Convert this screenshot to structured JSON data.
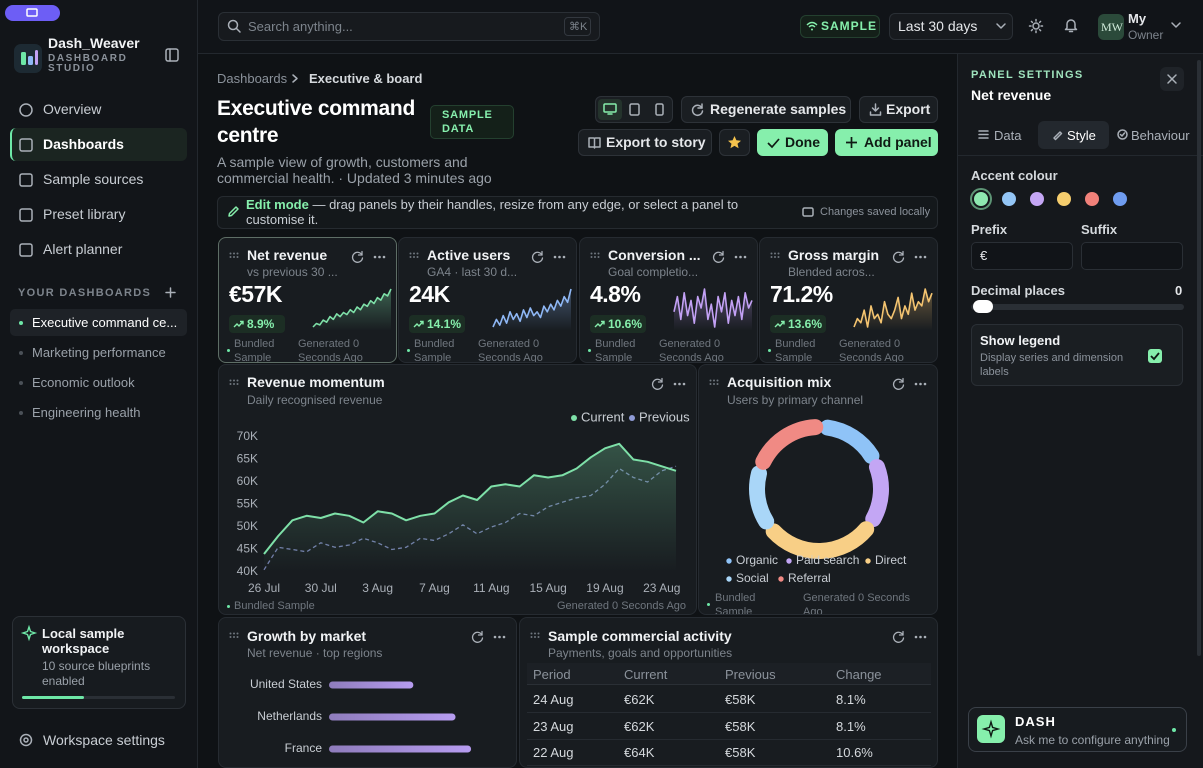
{
  "sidebar": {
    "brand": "Dash_Weaver",
    "brand_sub": "DASHBOARD STUDIO",
    "nav": [
      "Overview",
      "Dashboards",
      "Sample sources",
      "Preset library",
      "Alert planner"
    ],
    "section": "YOUR DASHBOARDS",
    "dashboards": [
      "Executive command ce...",
      "Marketing performance",
      "Economic outlook",
      "Engineering health"
    ],
    "workspace": {
      "title": "Local sample workspace",
      "text": "10 source blueprints enabled"
    },
    "settings": "Workspace settings"
  },
  "topbar": {
    "search": "Search anything...",
    "shortcut": "⌘K",
    "badge": "SAMPLE",
    "range": "Last 30 days",
    "avatar": "MW",
    "user": "My",
    "role": "Owner"
  },
  "header": {
    "breadcrumb": [
      "Dashboards",
      "Executive & board"
    ],
    "title": "Executive command centre",
    "badge": "SAMPLE DATA",
    "subtitle": "A sample view of growth, customers and commercial health. · Updated 3 minutes ago",
    "buttons": [
      "Regenerate samples",
      "Export",
      "Export to story",
      "Done",
      "Add panel"
    ]
  },
  "edit_bar": {
    "label": "Edit mode",
    "text": "— drag panels by their handles, resize from any edge, or select a panel to customise it.",
    "status": "Changes saved locally"
  },
  "kpis": [
    {
      "title": "Net revenue",
      "subtitle": "vs previous 30 ...",
      "value": "€57K",
      "delta": "8.9%",
      "source": "Bundled Sample",
      "generated": "Generated 0 Seconds Ago"
    },
    {
      "title": "Active users",
      "subtitle": "GA4 · last 30 d...",
      "value": "24K",
      "delta": "14.1%",
      "source": "Bundled Sample",
      "generated": "Generated 0 Seconds Ago"
    },
    {
      "title": "Conversion ...",
      "subtitle": "Goal completio...",
      "value": "4.8%",
      "delta": "10.6%",
      "source": "Bundled Sample",
      "generated": "Generated 0 Seconds Ago"
    },
    {
      "title": "Gross margin",
      "subtitle": "Blended acros...",
      "value": "71.2%",
      "delta": "13.6%",
      "source": "Bundled Sample",
      "generated": "Generated 0 Seconds Ago"
    }
  ],
  "chart_data": [
    {
      "type": "line",
      "title": "Revenue momentum",
      "subtitle": "Daily recognised revenue",
      "categories": [
        "26 Jul",
        null,
        null,
        null,
        "30 Jul",
        null,
        null,
        null,
        "3 Aug",
        null,
        null,
        null,
        "7 Aug",
        null,
        null,
        null,
        "11 Aug",
        null,
        null,
        null,
        "15 Aug",
        null,
        null,
        null,
        "19 Aug",
        null,
        null,
        null,
        "23 Aug",
        null
      ],
      "series": [
        {
          "name": "Current",
          "color": "#7ee0a8",
          "values": [
            44000,
            48000,
            51500,
            52500,
            52000,
            53000,
            52500,
            51000,
            53500,
            53000,
            51500,
            52500,
            53000,
            55500,
            57000,
            56000,
            59000,
            59500,
            59000,
            61500,
            61000,
            61500,
            63000,
            65500,
            67500,
            68500,
            65000,
            64500,
            63500,
            62500
          ]
        },
        {
          "name": "Previous",
          "color": "#8f9bd6",
          "dashed": true,
          "values": [
            40500,
            45500,
            45000,
            44500,
            46500,
            45500,
            46000,
            47500,
            46500,
            45000,
            45500,
            47500,
            47000,
            48500,
            50500,
            48500,
            50000,
            51000,
            53000,
            52500,
            54500,
            55500,
            56500,
            57000,
            59500,
            63000,
            61000,
            60000,
            62500,
            63500
          ]
        }
      ],
      "ylim": [
        40000,
        70000
      ],
      "yticks": [
        {
          "value": 40000,
          "label": "40K"
        },
        {
          "value": 45000,
          "label": "45K"
        },
        {
          "value": 50000,
          "label": "50K"
        },
        {
          "value": 55000,
          "label": "55K"
        },
        {
          "value": 60000,
          "label": "60K"
        },
        {
          "value": 65000,
          "label": "65K"
        },
        {
          "value": 70000,
          "label": "70K"
        }
      ],
      "grid": false,
      "legend": "top-right",
      "footer": [
        "Bundled Sample",
        "Generated 0 Seconds Ago"
      ]
    },
    {
      "type": "donut",
      "title": "Acquisition mix",
      "subtitle": "Users by primary channel",
      "categories": [
        "Organic",
        "Paid search",
        "Direct",
        "Social",
        "Referral"
      ],
      "values": [
        17,
        17,
        30,
        16,
        20
      ],
      "colors": [
        "#8fc3f7",
        "#c3a6f4",
        "#f8cf86",
        "#a9d6f8",
        "#f08a84"
      ],
      "legend": "bottom",
      "footer": [
        "Bundled Sample",
        "Generated 0 Seconds Ago"
      ]
    },
    {
      "type": "barh",
      "title": "Growth by market",
      "subtitle": "Net revenue · top regions",
      "categories": [
        "United States",
        "Netherlands",
        "France"
      ],
      "values": [
        38,
        57,
        64
      ],
      "xlim": [
        0,
        100
      ],
      "color": "#b69cf0"
    },
    {
      "type": "line",
      "color": "#7ee0a8",
      "values": [
        3,
        4,
        3.6,
        5,
        4.4,
        6,
        5.2,
        6.8,
        6,
        7.2,
        6.6,
        8,
        7.2,
        8.8,
        8,
        9.6,
        9,
        10.6,
        9.8,
        11.5,
        10.8,
        12.6,
        12,
        14
      ]
    },
    {
      "type": "line",
      "color": "#8fb8f6",
      "values": [
        4,
        6,
        4.5,
        7,
        5,
        8,
        6,
        7.5,
        5.5,
        8.5,
        6.5,
        9,
        7,
        8,
        6.5,
        9.5,
        8,
        10,
        8.5,
        11,
        9.5,
        12,
        10.5,
        14
      ]
    },
    {
      "type": "line",
      "color": "#c3a1f5",
      "values": [
        8,
        12,
        6,
        13,
        7,
        11,
        5,
        12,
        9,
        14,
        6,
        10,
        4,
        12,
        8,
        13,
        5,
        11,
        7,
        12,
        6,
        13,
        9,
        11
      ]
    },
    {
      "type": "line",
      "color": "#f4c470",
      "values": [
        4,
        6,
        5,
        8,
        4,
        9,
        6,
        7,
        5,
        10,
        7,
        6,
        8,
        11,
        6,
        9,
        7,
        12,
        8,
        10,
        9,
        13,
        10,
        12
      ]
    }
  ],
  "table": {
    "title": "Sample commercial activity",
    "subtitle": "Payments, goals and opportunities",
    "columns": [
      "Period",
      "Current",
      "Previous",
      "Change"
    ],
    "rows": [
      [
        "24 Aug",
        "€62K",
        "€58K",
        "8.1%"
      ],
      [
        "23 Aug",
        "€62K",
        "€58K",
        "8.1%"
      ],
      [
        "22 Aug",
        "€64K",
        "€58K",
        "10.6%"
      ]
    ]
  },
  "panel": {
    "heading": "PANEL SETTINGS",
    "target": "Net revenue",
    "tabs": [
      "Data",
      "Style",
      "Behaviour"
    ],
    "accent_label": "Accent colour",
    "accent_colors": [
      "#8ee8b0",
      "#93c5f5",
      "#c4a6f4",
      "#f5cd6e",
      "#f1817a",
      "#6f9cf0"
    ],
    "prefix_label": "Prefix",
    "prefix": "€",
    "suffix_label": "Suffix",
    "decimals_label": "Decimal places",
    "decimals": 0,
    "legend_title": "Show legend",
    "legend_text": "Display series and dimension labels",
    "show_legend": true
  },
  "assistant": {
    "name": "DASH",
    "text": "Ask me to configure anything"
  }
}
